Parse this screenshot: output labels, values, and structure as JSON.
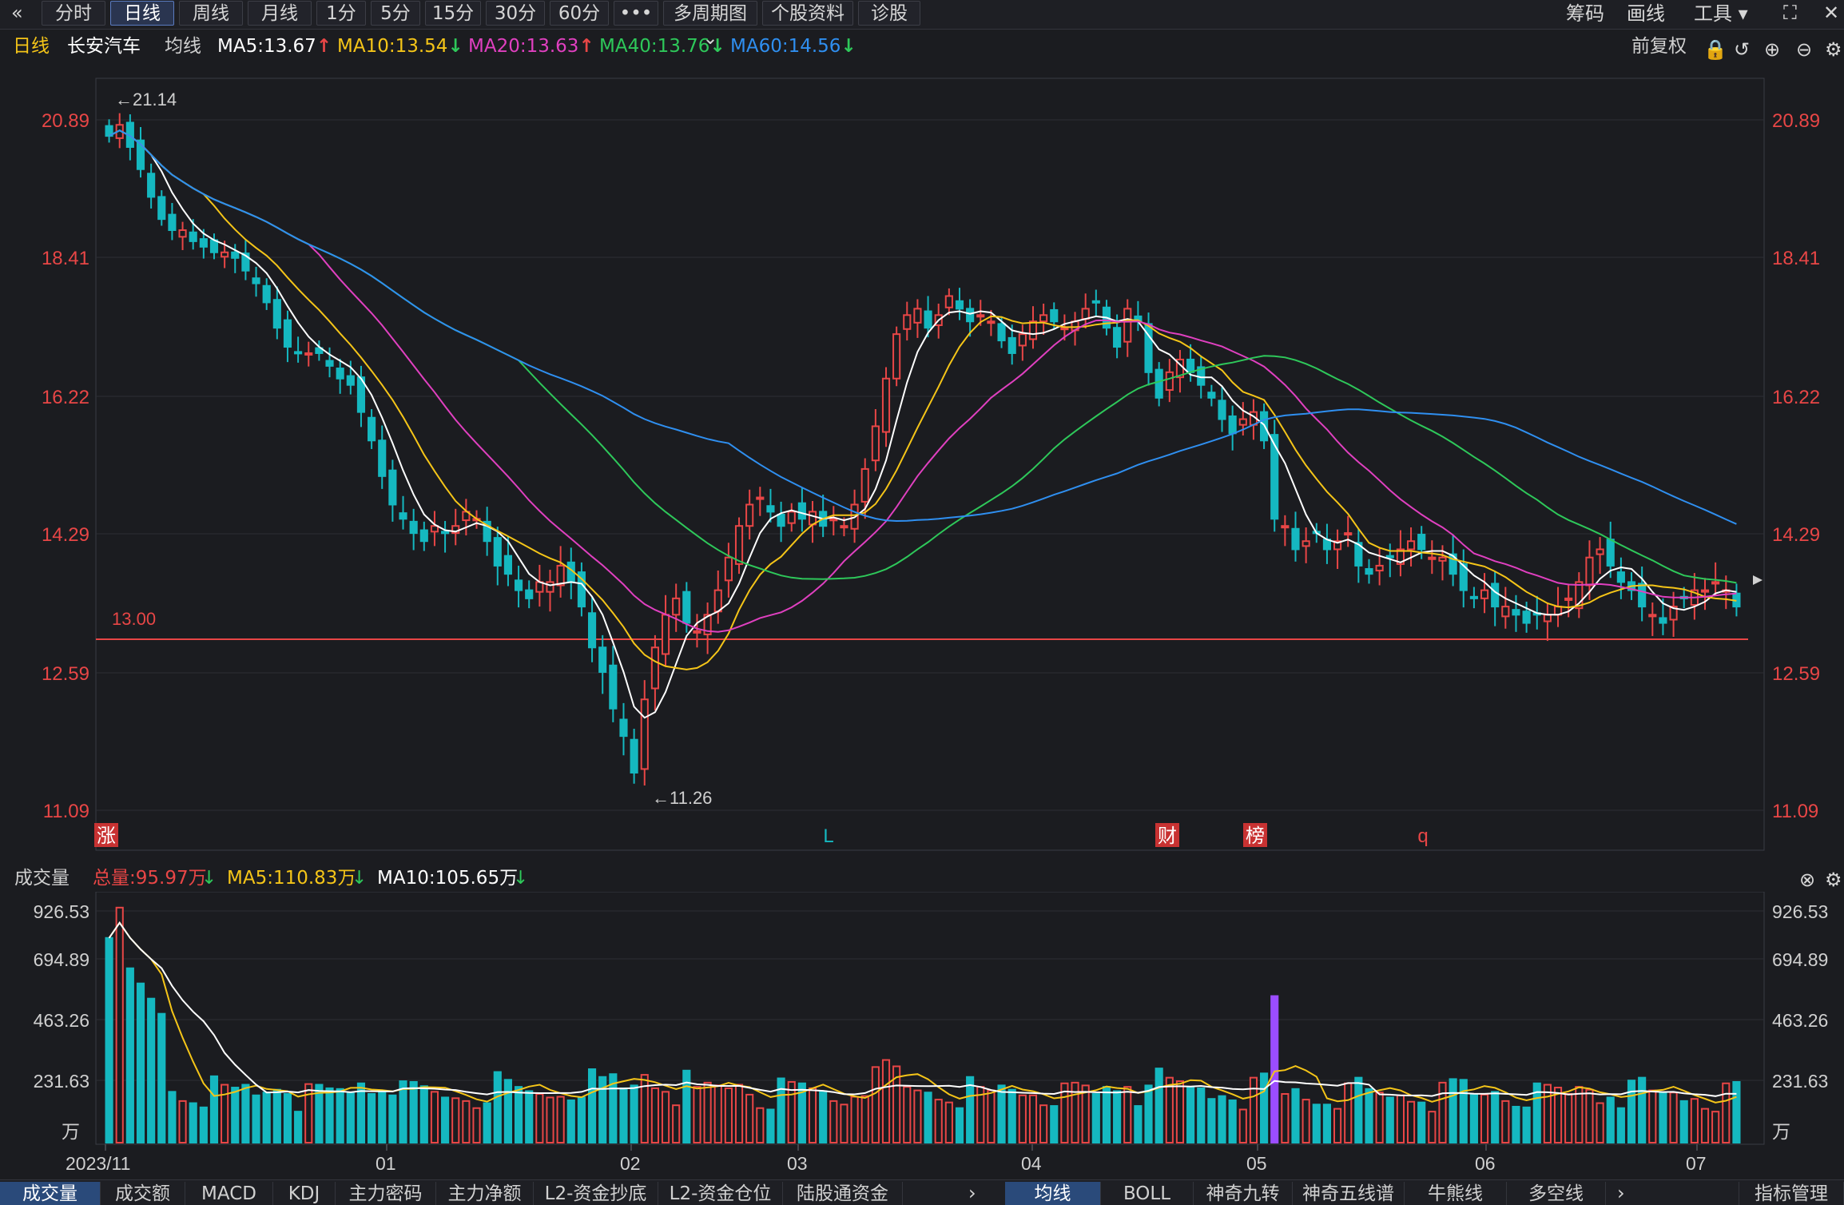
{
  "toolbar": {
    "back_icon": "double-chevron-left-icon",
    "tabs": [
      "分时",
      "日线",
      "周线",
      "月线",
      "1分",
      "5分",
      "15分",
      "30分",
      "60分",
      "•••",
      "多周期图 ⌄",
      "个股资料",
      "诊股"
    ],
    "active_tab": "日线",
    "right_items": [
      "筹码",
      "画线",
      "工具 ▾"
    ],
    "expand_icon": "fullscreen-icon"
  },
  "info": {
    "period": "日线",
    "stock_name": "长安汽车",
    "ma_label": "均线",
    "ma5": "MA5:13.67",
    "ma10": "MA10:13.54",
    "ma20": "MA20:13.63",
    "ma40": "MA40:13.76",
    "ma60": "MA60:14.56",
    "ma5_arrow": "↑",
    "ma10_arrow": "↓",
    "ma20_arrow": "↑",
    "ma40_arrow": "↓",
    "ma60_arrow": "↓",
    "adjust": "前复权",
    "colors": {
      "ma5": "#ffffff",
      "ma10": "#f5c518",
      "ma20": "#e040c0",
      "ma40": "#2ec85a",
      "ma60": "#2f8ff0",
      "up": "#e84646",
      "down": "#15b8c0"
    }
  },
  "price_axis": {
    "ticks": [
      "20.89",
      "18.41",
      "16.22",
      "14.29",
      "12.59",
      "11.09"
    ],
    "high_marker": "←21.14",
    "low_marker": "←11.26",
    "level_label": "13.00",
    "event_tags": [
      "涨",
      "L",
      "财",
      "榜",
      "q"
    ]
  },
  "volume": {
    "title": "成交量",
    "total": "总量:95.97万",
    "ma5": "MA5:110.83万",
    "ma10": "MA10:105.65万",
    "ticks": [
      "926.53",
      "694.89",
      "463.26",
      "231.63"
    ],
    "unit": "万"
  },
  "date_axis": [
    "2023/11",
    "01",
    "02",
    "03",
    "04",
    "05",
    "06",
    "07"
  ],
  "bottom_tabs_left": [
    "成交量",
    "成交额",
    "MACD",
    "KDJ",
    "主力密码",
    "主力净额",
    "L2-资金抄底",
    "L2-资金仓位",
    "陆股通资金"
  ],
  "bottom_tabs_right": [
    "均线",
    "BOLL",
    "神奇九转",
    "神奇五线谱",
    "牛熊线",
    "多空线"
  ],
  "bottom_manage": "指标管理",
  "chart_data": {
    "type": "candlestick",
    "y_axis_ticks": [
      20.89,
      18.41,
      16.22,
      14.29,
      12.59,
      11.09
    ],
    "y_range": [
      11.09,
      21.14
    ],
    "support_level": 13.0,
    "closes": [
      20.6,
      20.8,
      20.4,
      20.0,
      19.5,
      19.1,
      18.9,
      18.9,
      18.7,
      18.6,
      18.5,
      18.5,
      18.4,
      18.2,
      18.0,
      17.7,
      17.3,
      17.0,
      16.9,
      16.9,
      16.9,
      16.7,
      16.5,
      16.4,
      16.0,
      15.6,
      15.1,
      14.7,
      14.5,
      14.3,
      14.2,
      14.4,
      14.3,
      14.4,
      14.6,
      14.5,
      14.2,
      13.9,
      13.8,
      13.6,
      13.5,
      13.7,
      13.7,
      13.9,
      13.7,
      13.4,
      12.9,
      12.6,
      12.2,
      11.9,
      11.5,
      12.3,
      12.9,
      13.3,
      13.5,
      13.2,
      13.1,
      13.3,
      13.6,
      14.0,
      14.4,
      14.7,
      14.8,
      14.6,
      14.4,
      14.6,
      14.5,
      14.6,
      14.4,
      14.5,
      14.4,
      14.7,
      15.2,
      15.8,
      16.5,
      17.2,
      17.5,
      17.6,
      17.3,
      17.5,
      17.8,
      17.6,
      17.4,
      17.5,
      17.4,
      17.1,
      16.9,
      17.2,
      17.4,
      17.5,
      17.4,
      17.3,
      17.4,
      17.6,
      17.7,
      17.3,
      17.0,
      17.6,
      17.4,
      16.6,
      16.2,
      16.6,
      16.8,
      16.6,
      16.4,
      16.2,
      15.9,
      15.7,
      15.9,
      16.0,
      15.6,
      14.5,
      14.4,
      14.1,
      14.2,
      14.3,
      14.1,
      14.2,
      14.3,
      13.9,
      13.8,
      13.9,
      14.0,
      14.1,
      14.2,
      14.1,
      14.0,
      14.0,
      13.8,
      13.6,
      13.5,
      13.6,
      13.4,
      13.4,
      13.3,
      13.2,
      13.3,
      13.3,
      13.4,
      13.5,
      13.7,
      14.0,
      14.1,
      13.9,
      13.7,
      13.6,
      13.4,
      13.3,
      13.2,
      13.4,
      13.5,
      13.6,
      13.6,
      13.7,
      13.6,
      13.4
    ],
    "volume_ticks": [
      926.53,
      694.89,
      463.26,
      231.63
    ],
    "volume_unit": "万",
    "volume_total": 95.97,
    "volume_ma5": 110.83,
    "volume_ma10": 105.65
  }
}
